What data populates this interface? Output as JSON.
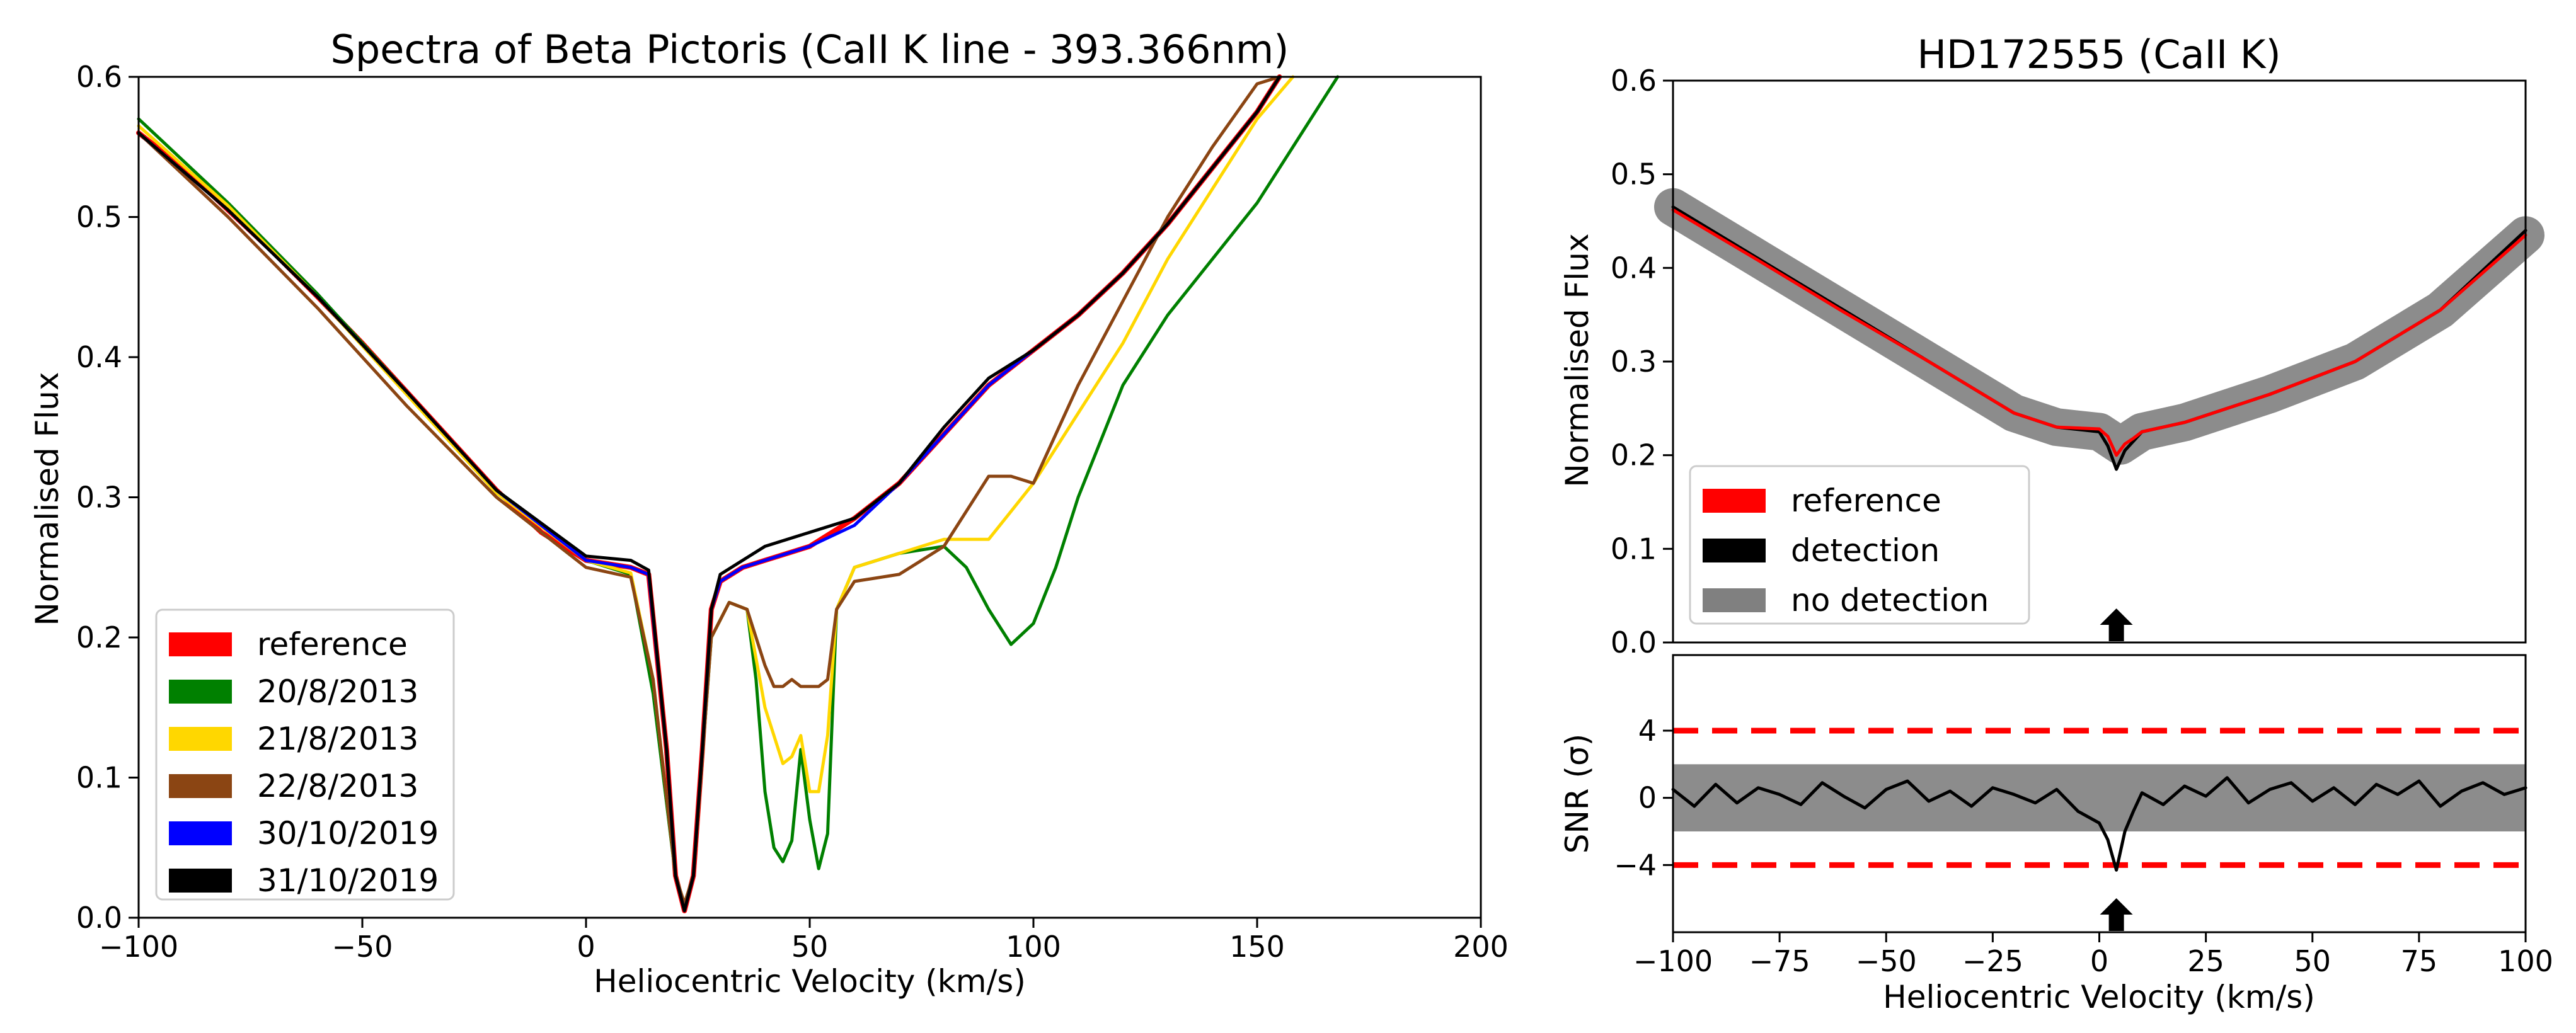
{
  "chart_data": [
    {
      "type": "line",
      "title": "Spectra of Beta Pictoris (CaII K line - 393.366nm)",
      "xlabel": "Heliocentric Velocity (km/s)",
      "ylabel": "Normalised Flux",
      "xlim": [
        -100,
        200
      ],
      "ylim": [
        0.0,
        0.6
      ],
      "xticks": [
        -100,
        -50,
        0,
        50,
        100,
        150,
        200
      ],
      "xtick_labels": [
        "−100",
        "−50",
        "0",
        "50",
        "100",
        "150",
        "200"
      ],
      "yticks": [
        0.0,
        0.1,
        0.2,
        0.3,
        0.4,
        0.5,
        0.6
      ],
      "ytick_labels": [
        "0.0",
        "0.1",
        "0.2",
        "0.3",
        "0.4",
        "0.5",
        "0.6"
      ],
      "grid": false,
      "legend_position": "lower-left",
      "legend": [
        {
          "label": "reference",
          "color": "#ff0000"
        },
        {
          "label": "20/8/2013",
          "color": "#008000"
        },
        {
          "label": "21/8/2013",
          "color": "#ffd700"
        },
        {
          "label": "22/8/2013",
          "color": "#8b4513"
        },
        {
          "label": "30/10/2019",
          "color": "#0000ff"
        },
        {
          "label": "31/10/2019",
          "color": "#000000"
        }
      ],
      "series": [
        {
          "name": "reference",
          "color": "#ff0000",
          "x": [
            -100,
            -90,
            -80,
            -70,
            -60,
            -50,
            -40,
            -30,
            -20,
            -10,
            0,
            10,
            14,
            18,
            20,
            22,
            24,
            26,
            28,
            30,
            35,
            40,
            50,
            60,
            70,
            80,
            90,
            100,
            110,
            120,
            130,
            140,
            150,
            155
          ],
          "y": [
            0.56,
            0.535,
            0.505,
            0.475,
            0.443,
            0.41,
            0.375,
            0.34,
            0.305,
            0.275,
            0.255,
            0.25,
            0.245,
            0.12,
            0.03,
            0.005,
            0.03,
            0.12,
            0.22,
            0.24,
            0.25,
            0.255,
            0.265,
            0.285,
            0.31,
            0.345,
            0.38,
            0.405,
            0.43,
            0.46,
            0.495,
            0.535,
            0.575,
            0.6
          ]
        },
        {
          "name": "20/8/2013",
          "color": "#008000",
          "x": [
            -100,
            -80,
            -60,
            -40,
            -20,
            0,
            10,
            15,
            20,
            22,
            24,
            28,
            32,
            36,
            38,
            40,
            42,
            44,
            46,
            48,
            50,
            52,
            54,
            56,
            60,
            70,
            80,
            85,
            90,
            95,
            100,
            105,
            110,
            120,
            130,
            140,
            150,
            160,
            168
          ],
          "y": [
            0.57,
            0.51,
            0.445,
            0.375,
            0.305,
            0.255,
            0.245,
            0.16,
            0.03,
            0.01,
            0.03,
            0.2,
            0.225,
            0.22,
            0.17,
            0.09,
            0.05,
            0.04,
            0.055,
            0.12,
            0.07,
            0.035,
            0.06,
            0.22,
            0.25,
            0.26,
            0.265,
            0.25,
            0.22,
            0.195,
            0.21,
            0.25,
            0.3,
            0.38,
            0.43,
            0.47,
            0.51,
            0.56,
            0.6
          ]
        },
        {
          "name": "21/8/2013",
          "color": "#ffd700",
          "x": [
            -100,
            -80,
            -60,
            -40,
            -20,
            0,
            10,
            15,
            20,
            22,
            24,
            28,
            32,
            36,
            40,
            44,
            46,
            48,
            50,
            52,
            54,
            56,
            60,
            70,
            80,
            90,
            95,
            100,
            110,
            120,
            130,
            140,
            150,
            158
          ],
          "y": [
            0.565,
            0.508,
            0.443,
            0.373,
            0.303,
            0.255,
            0.246,
            0.17,
            0.03,
            0.01,
            0.03,
            0.2,
            0.225,
            0.22,
            0.15,
            0.11,
            0.115,
            0.13,
            0.09,
            0.09,
            0.13,
            0.22,
            0.25,
            0.26,
            0.27,
            0.27,
            0.29,
            0.31,
            0.36,
            0.41,
            0.47,
            0.52,
            0.57,
            0.6
          ]
        },
        {
          "name": "22/8/2013",
          "color": "#8b4513",
          "x": [
            -100,
            -80,
            -60,
            -40,
            -20,
            0,
            10,
            15,
            20,
            22,
            24,
            28,
            32,
            36,
            40,
            42,
            44,
            46,
            48,
            50,
            52,
            54,
            56,
            60,
            70,
            80,
            90,
            95,
            100,
            110,
            120,
            130,
            140,
            150,
            155
          ],
          "y": [
            0.56,
            0.5,
            0.435,
            0.365,
            0.3,
            0.25,
            0.243,
            0.17,
            0.03,
            0.01,
            0.03,
            0.2,
            0.225,
            0.22,
            0.18,
            0.165,
            0.165,
            0.17,
            0.165,
            0.165,
            0.165,
            0.17,
            0.22,
            0.24,
            0.245,
            0.265,
            0.315,
            0.315,
            0.31,
            0.38,
            0.44,
            0.5,
            0.55,
            0.595,
            0.6
          ]
        },
        {
          "name": "30/10/2019",
          "color": "#0000ff",
          "x": [
            -100,
            -80,
            -60,
            -40,
            -20,
            0,
            10,
            14,
            18,
            20,
            22,
            24,
            26,
            28,
            30,
            35,
            40,
            50,
            60,
            70,
            80,
            90,
            100,
            110,
            120,
            130,
            140,
            150,
            155
          ],
          "y": [
            0.56,
            0.505,
            0.443,
            0.375,
            0.305,
            0.255,
            0.25,
            0.245,
            0.12,
            0.03,
            0.005,
            0.03,
            0.12,
            0.22,
            0.24,
            0.25,
            0.255,
            0.265,
            0.28,
            0.31,
            0.345,
            0.38,
            0.405,
            0.43,
            0.46,
            0.495,
            0.535,
            0.575,
            0.6
          ]
        },
        {
          "name": "31/10/2019",
          "color": "#000000",
          "x": [
            -100,
            -80,
            -60,
            -40,
            -20,
            0,
            10,
            14,
            18,
            20,
            22,
            24,
            26,
            28,
            30,
            35,
            40,
            50,
            60,
            70,
            80,
            90,
            100,
            110,
            120,
            130,
            140,
            150,
            155
          ],
          "y": [
            0.56,
            0.505,
            0.443,
            0.375,
            0.305,
            0.258,
            0.255,
            0.248,
            0.12,
            0.03,
            0.005,
            0.03,
            0.12,
            0.22,
            0.245,
            0.255,
            0.265,
            0.275,
            0.285,
            0.31,
            0.35,
            0.385,
            0.405,
            0.43,
            0.46,
            0.495,
            0.535,
            0.575,
            0.6
          ]
        }
      ]
    },
    {
      "type": "line",
      "title": "HD172555 (CaII K)",
      "xlabel": "",
      "ylabel": "Normalised Flux",
      "xlim": [
        -100,
        100
      ],
      "ylim": [
        0.0,
        0.6
      ],
      "yticks": [
        0.0,
        0.1,
        0.2,
        0.3,
        0.4,
        0.5,
        0.6
      ],
      "ytick_labels": [
        "0.0",
        "0.1",
        "0.2",
        "0.3",
        "0.4",
        "0.5",
        "0.6"
      ],
      "grid": false,
      "legend_position": "lower-left",
      "legend": [
        {
          "label": "reference",
          "color": "#ff0000"
        },
        {
          "label": "detection",
          "color": "#000000"
        },
        {
          "label": "no detection",
          "color": "#808080"
        }
      ],
      "annotations": [
        {
          "type": "arrow-up",
          "x": 4
        }
      ],
      "series": [
        {
          "name": "no detection",
          "color": "#808080",
          "x": [
            -100,
            -80,
            -60,
            -40,
            -20,
            -10,
            0,
            5,
            10,
            20,
            40,
            60,
            80,
            100
          ],
          "y": [
            0.465,
            0.41,
            0.355,
            0.3,
            0.245,
            0.23,
            0.225,
            0.21,
            0.225,
            0.235,
            0.265,
            0.3,
            0.355,
            0.435
          ]
        },
        {
          "name": "detection",
          "color": "#000000",
          "x": [
            -100,
            -80,
            -60,
            -40,
            -20,
            -10,
            0,
            2,
            4,
            6,
            8,
            10,
            20,
            40,
            60,
            80,
            100
          ],
          "y": [
            0.465,
            0.41,
            0.355,
            0.3,
            0.245,
            0.23,
            0.225,
            0.21,
            0.185,
            0.205,
            0.215,
            0.225,
            0.235,
            0.265,
            0.3,
            0.355,
            0.44
          ]
        },
        {
          "name": "reference",
          "color": "#ff0000",
          "x": [
            -100,
            -80,
            -60,
            -40,
            -20,
            -10,
            0,
            2,
            4,
            6,
            8,
            10,
            20,
            40,
            60,
            80,
            100
          ],
          "y": [
            0.462,
            0.408,
            0.353,
            0.3,
            0.245,
            0.23,
            0.228,
            0.22,
            0.2,
            0.212,
            0.218,
            0.225,
            0.235,
            0.265,
            0.3,
            0.355,
            0.435
          ]
        }
      ]
    },
    {
      "type": "line",
      "title": "",
      "xlabel": "Heliocentric Velocity (km/s)",
      "ylabel": "SNR (σ)",
      "xlim": [
        -100,
        100
      ],
      "ylim": [
        -8,
        8.5
      ],
      "xticks": [
        -100,
        -75,
        -50,
        -25,
        0,
        25,
        50,
        75,
        100
      ],
      "xtick_labels": [
        "−100",
        "−75",
        "−50",
        "−25",
        "0",
        "25",
        "50",
        "75",
        "100"
      ],
      "yticks": [
        -4,
        0,
        4
      ],
      "ytick_labels": [
        "−4",
        "0",
        "4"
      ],
      "grid": false,
      "thresholds": [
        4,
        -4
      ],
      "threshold_color": "#ff0000",
      "band": {
        "color": "#808080",
        "low": -2,
        "high": 2
      },
      "annotations": [
        {
          "type": "arrow-up",
          "x": 4
        }
      ],
      "series": [
        {
          "name": "",
          "color": "#000000",
          "x": [
            -100,
            -95,
            -90,
            -85,
            -80,
            -75,
            -70,
            -65,
            -60,
            -55,
            -50,
            -45,
            -40,
            -35,
            -30,
            -25,
            -20,
            -15,
            -10,
            -5,
            0,
            2,
            4,
            6,
            8,
            10,
            15,
            20,
            25,
            30,
            35,
            40,
            45,
            50,
            55,
            60,
            65,
            70,
            75,
            80,
            85,
            90,
            95,
            100
          ],
          "y": [
            0.5,
            -0.5,
            0.8,
            -0.3,
            0.6,
            0.2,
            -0.4,
            0.9,
            0.1,
            -0.6,
            0.5,
            1.0,
            -0.2,
            0.4,
            -0.5,
            0.6,
            0.2,
            -0.3,
            0.5,
            -0.8,
            -1.5,
            -2.5,
            -4.3,
            -2.0,
            -0.8,
            0.3,
            -0.4,
            0.7,
            0.1,
            1.2,
            -0.3,
            0.5,
            0.9,
            -0.2,
            0.6,
            -0.4,
            0.8,
            0.2,
            1.0,
            -0.5,
            0.4,
            0.9,
            0.2,
            0.6
          ]
        }
      ]
    }
  ]
}
